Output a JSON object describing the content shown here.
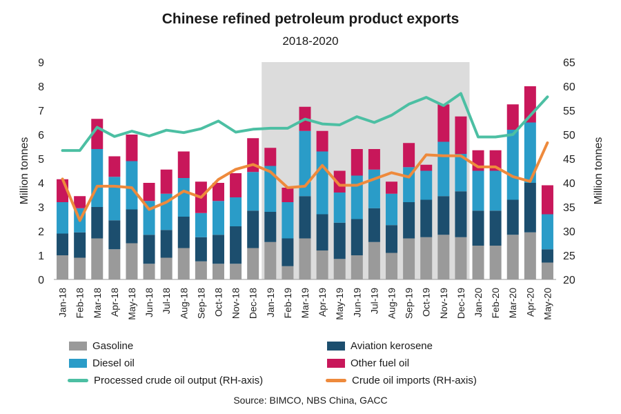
{
  "chart_data": {
    "type": "bar",
    "title": "Chinese refined petroleum product exports",
    "subtitle": "2018-2020",
    "ylabel": "Million tonnes",
    "y2label": "Million tonnes",
    "ylim": [
      0,
      9
    ],
    "y2lim": [
      20,
      65
    ],
    "yticks": [
      0,
      1,
      2,
      3,
      4,
      5,
      6,
      7,
      8,
      9
    ],
    "y2ticks": [
      20,
      25,
      30,
      35,
      40,
      45,
      50,
      55,
      60,
      65
    ],
    "stacked": true,
    "grid": false,
    "shaded_period": [
      "Jan-19",
      "Dec-19"
    ],
    "categories": [
      "Jan-18",
      "Feb-18",
      "Mar-18",
      "Apr-18",
      "May-18",
      "Jun-18",
      "Jul-18",
      "Aug-18",
      "Sep-18",
      "Oct-18",
      "Nov-18",
      "Dec-18",
      "Jan-19",
      "Feb-19",
      "Mar-19",
      "Apr-19",
      "May-19",
      "Jun-19",
      "Jul-19",
      "Aug-19",
      "Sep-19",
      "Oct-19",
      "Nov-19",
      "Dec-19",
      "Jan-20",
      "Feb-20",
      "Mar-20",
      "Apr-20",
      "May-20"
    ],
    "series": [
      {
        "name": "Gasoline",
        "color": "#9a9a9a",
        "values": [
          1.0,
          0.9,
          1.7,
          1.25,
          1.5,
          0.65,
          0.9,
          1.3,
          0.75,
          0.65,
          0.65,
          1.3,
          1.55,
          0.55,
          1.7,
          1.2,
          0.85,
          1.0,
          1.55,
          1.1,
          1.7,
          1.75,
          1.85,
          1.75,
          1.4,
          1.4,
          1.85,
          1.95,
          0.7
        ]
      },
      {
        "name": "Aviation kerosene",
        "color": "#1c4e6e",
        "values": [
          0.9,
          1.05,
          1.3,
          1.2,
          1.4,
          1.2,
          1.15,
          1.3,
          1.0,
          1.2,
          1.55,
          1.55,
          1.25,
          1.15,
          1.75,
          1.5,
          1.5,
          1.5,
          1.4,
          1.15,
          1.5,
          1.55,
          1.6,
          1.9,
          1.45,
          1.45,
          1.45,
          2.05,
          0.55
        ]
      },
      {
        "name": "Diesel oil",
        "color": "#2a9cc8",
        "values": [
          1.3,
          1.0,
          2.4,
          1.8,
          2.0,
          1.4,
          1.5,
          1.6,
          1.0,
          1.4,
          1.2,
          1.6,
          1.9,
          1.5,
          2.7,
          2.6,
          1.25,
          1.8,
          1.6,
          1.3,
          1.45,
          1.2,
          2.25,
          1.55,
          1.65,
          1.65,
          2.9,
          2.5,
          1.45
        ]
      },
      {
        "name": "Other fuel oil",
        "color": "#c8175a",
        "values": [
          0.95,
          0.5,
          1.25,
          0.85,
          1.1,
          0.75,
          1.0,
          1.1,
          1.3,
          0.75,
          1.0,
          1.4,
          0.75,
          0.6,
          1.0,
          0.85,
          0.9,
          1.1,
          0.85,
          0.5,
          1.0,
          0.25,
          1.55,
          1.55,
          0.85,
          0.85,
          1.05,
          1.5,
          1.2
        ]
      },
      {
        "name": "Processed crude oil output (RH-axis)",
        "type": "line",
        "axis": "right",
        "color": "#4cbfa3",
        "values": [
          46.7,
          46.7,
          51.5,
          49.6,
          50.7,
          49.7,
          50.9,
          50.4,
          51.2,
          52.8,
          50.5,
          51.1,
          51.3,
          51.3,
          53.2,
          52.2,
          52.0,
          53.7,
          52.5,
          54.0,
          56.3,
          57.7,
          56.0,
          58.5,
          49.5,
          49.5,
          50.0,
          53.9,
          57.8
        ]
      },
      {
        "name": "Crude oil imports (RH-axis)",
        "type": "line",
        "axis": "right",
        "color": "#ee8a3c",
        "values": [
          40.8,
          32.2,
          39.3,
          39.3,
          39.0,
          34.5,
          36.0,
          38.3,
          37.0,
          40.7,
          42.8,
          43.8,
          42.3,
          39.0,
          39.3,
          43.6,
          39.5,
          39.5,
          40.8,
          42.1,
          41.2,
          45.8,
          45.6,
          45.6,
          43.3,
          43.3,
          41.3,
          40.3,
          48.3
        ]
      }
    ],
    "source": "Source: BIMCO, NBS China, GACC"
  }
}
